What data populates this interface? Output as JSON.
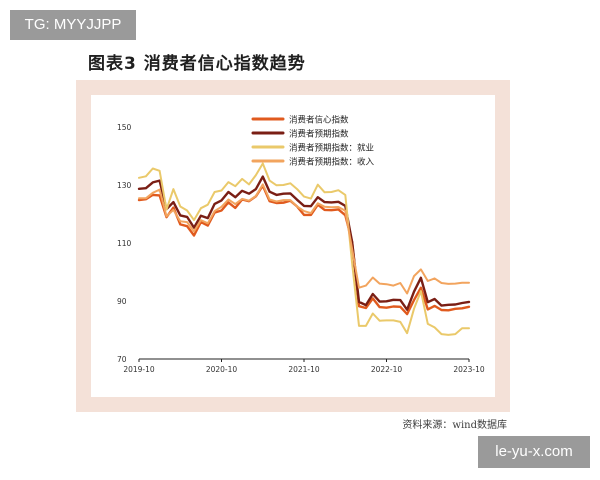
{
  "watermarks": {
    "top": "TG: MYYJJPP",
    "bottom": "le-yu-x.com"
  },
  "header": {
    "title": "图表3  消费者信心指数趋势"
  },
  "footer": {
    "source": "资料来源：wind数据库"
  },
  "main": {
    "chart": {
      "type": "line",
      "title": "",
      "xlabel": "",
      "ylabel": "",
      "ylim": [
        70,
        150
      ],
      "yticks": [
        "70",
        "90",
        "110",
        "130",
        "150"
      ],
      "xticks": [
        "2019-10",
        "2020-10",
        "2021-10",
        "2022-10",
        "2023-10"
      ],
      "grid": false,
      "legend_position": "top",
      "x": [
        "2019-10",
        "2019-11",
        "2019-12",
        "2020-01",
        "2020-02",
        "2020-03",
        "2020-04",
        "2020-05",
        "2020-06",
        "2020-07",
        "2020-08",
        "2020-09",
        "2020-10",
        "2020-11",
        "2020-12",
        "2021-01",
        "2021-02",
        "2021-03",
        "2021-04",
        "2021-05",
        "2021-06",
        "2021-07",
        "2021-08",
        "2021-09",
        "2021-10",
        "2021-11",
        "2021-12",
        "2022-01",
        "2022-02",
        "2022-03",
        "2022-04",
        "2022-05",
        "2022-06",
        "2022-07",
        "2022-08",
        "2022-09",
        "2022-10",
        "2022-11",
        "2022-12",
        "2023-01",
        "2023-02",
        "2023-03",
        "2023-04",
        "2023-05",
        "2023-06",
        "2023-07",
        "2023-08",
        "2023-09",
        "2023-10"
      ],
      "series": [
        {
          "name": "消费者信心指数",
          "color": "#e05a1e",
          "width": 2.4,
          "values": [
            124.8,
            125.1,
            126.6,
            126.4,
            118.9,
            122.2,
            116.4,
            115.8,
            112.6,
            117.2,
            116.0,
            120.5,
            121.2,
            124.0,
            122.1,
            125.0,
            124.4,
            126.1,
            129.8,
            124.4,
            123.8,
            123.9,
            124.6,
            122.6,
            119.7,
            119.7,
            123.2,
            121.4,
            121.3,
            121.6,
            119.6,
            110.4,
            88.2,
            87.6,
            90.9,
            87.9,
            87.7,
            88.1,
            88.0,
            85.5,
            90.3,
            94.6,
            87.1,
            88.3,
            86.9,
            86.8,
            87.3,
            87.5,
            88.0
          ]
        },
        {
          "name": "消费者预期指数",
          "color": "#7a1e14",
          "width": 2.4,
          "values": [
            128.7,
            128.9,
            130.9,
            131.5,
            121.7,
            124.1,
            119.5,
            119.0,
            115.3,
            119.4,
            118.6,
            123.5,
            124.7,
            127.6,
            125.8,
            128.0,
            127.0,
            128.6,
            132.9,
            127.7,
            126.6,
            127.0,
            127.1,
            124.9,
            122.8,
            122.7,
            125.8,
            124.1,
            124.0,
            124.2,
            122.8,
            110.4,
            89.7,
            88.6,
            92.4,
            89.8,
            89.9,
            90.4,
            90.3,
            87.0,
            93.2,
            98.0,
            89.6,
            90.7,
            88.4,
            88.7,
            88.8,
            89.3,
            89.7
          ]
        },
        {
          "name": "消费者预期指数：就业",
          "color": "#eac96a",
          "width": 2.0,
          "values": [
            132.5,
            133.0,
            135.7,
            134.9,
            121.5,
            128.6,
            122.6,
            121.2,
            117.9,
            122.0,
            123.2,
            127.6,
            128.1,
            131.0,
            129.6,
            132.1,
            130.2,
            133.4,
            137.4,
            131.5,
            129.9,
            130.0,
            130.6,
            128.6,
            126.0,
            125.3,
            130.1,
            127.5,
            127.6,
            128.2,
            126.6,
            103.1,
            81.4,
            81.4,
            85.7,
            83.2,
            83.3,
            83.3,
            82.8,
            78.9,
            87.3,
            93.4,
            82.1,
            80.9,
            78.6,
            78.3,
            78.6,
            80.6,
            80.6
          ]
        },
        {
          "name": "消费者预期指数：收入",
          "color": "#f2a45e",
          "width": 2.0,
          "values": [
            125.4,
            125.4,
            127.3,
            128.4,
            119.2,
            121.4,
            117.5,
            117.2,
            114.0,
            117.9,
            116.8,
            121.0,
            122.5,
            125.0,
            123.4,
            125.2,
            124.6,
            126.2,
            130.2,
            125.0,
            124.3,
            124.8,
            124.8,
            122.6,
            121.0,
            120.3,
            123.7,
            122.5,
            122.3,
            122.4,
            121.1,
            107.9,
            94.6,
            95.3,
            98.1,
            96.0,
            95.8,
            95.3,
            96.2,
            92.6,
            98.6,
            100.9,
            96.9,
            97.8,
            96.2,
            95.9,
            96.0,
            96.3,
            96.3
          ]
        }
      ]
    }
  }
}
